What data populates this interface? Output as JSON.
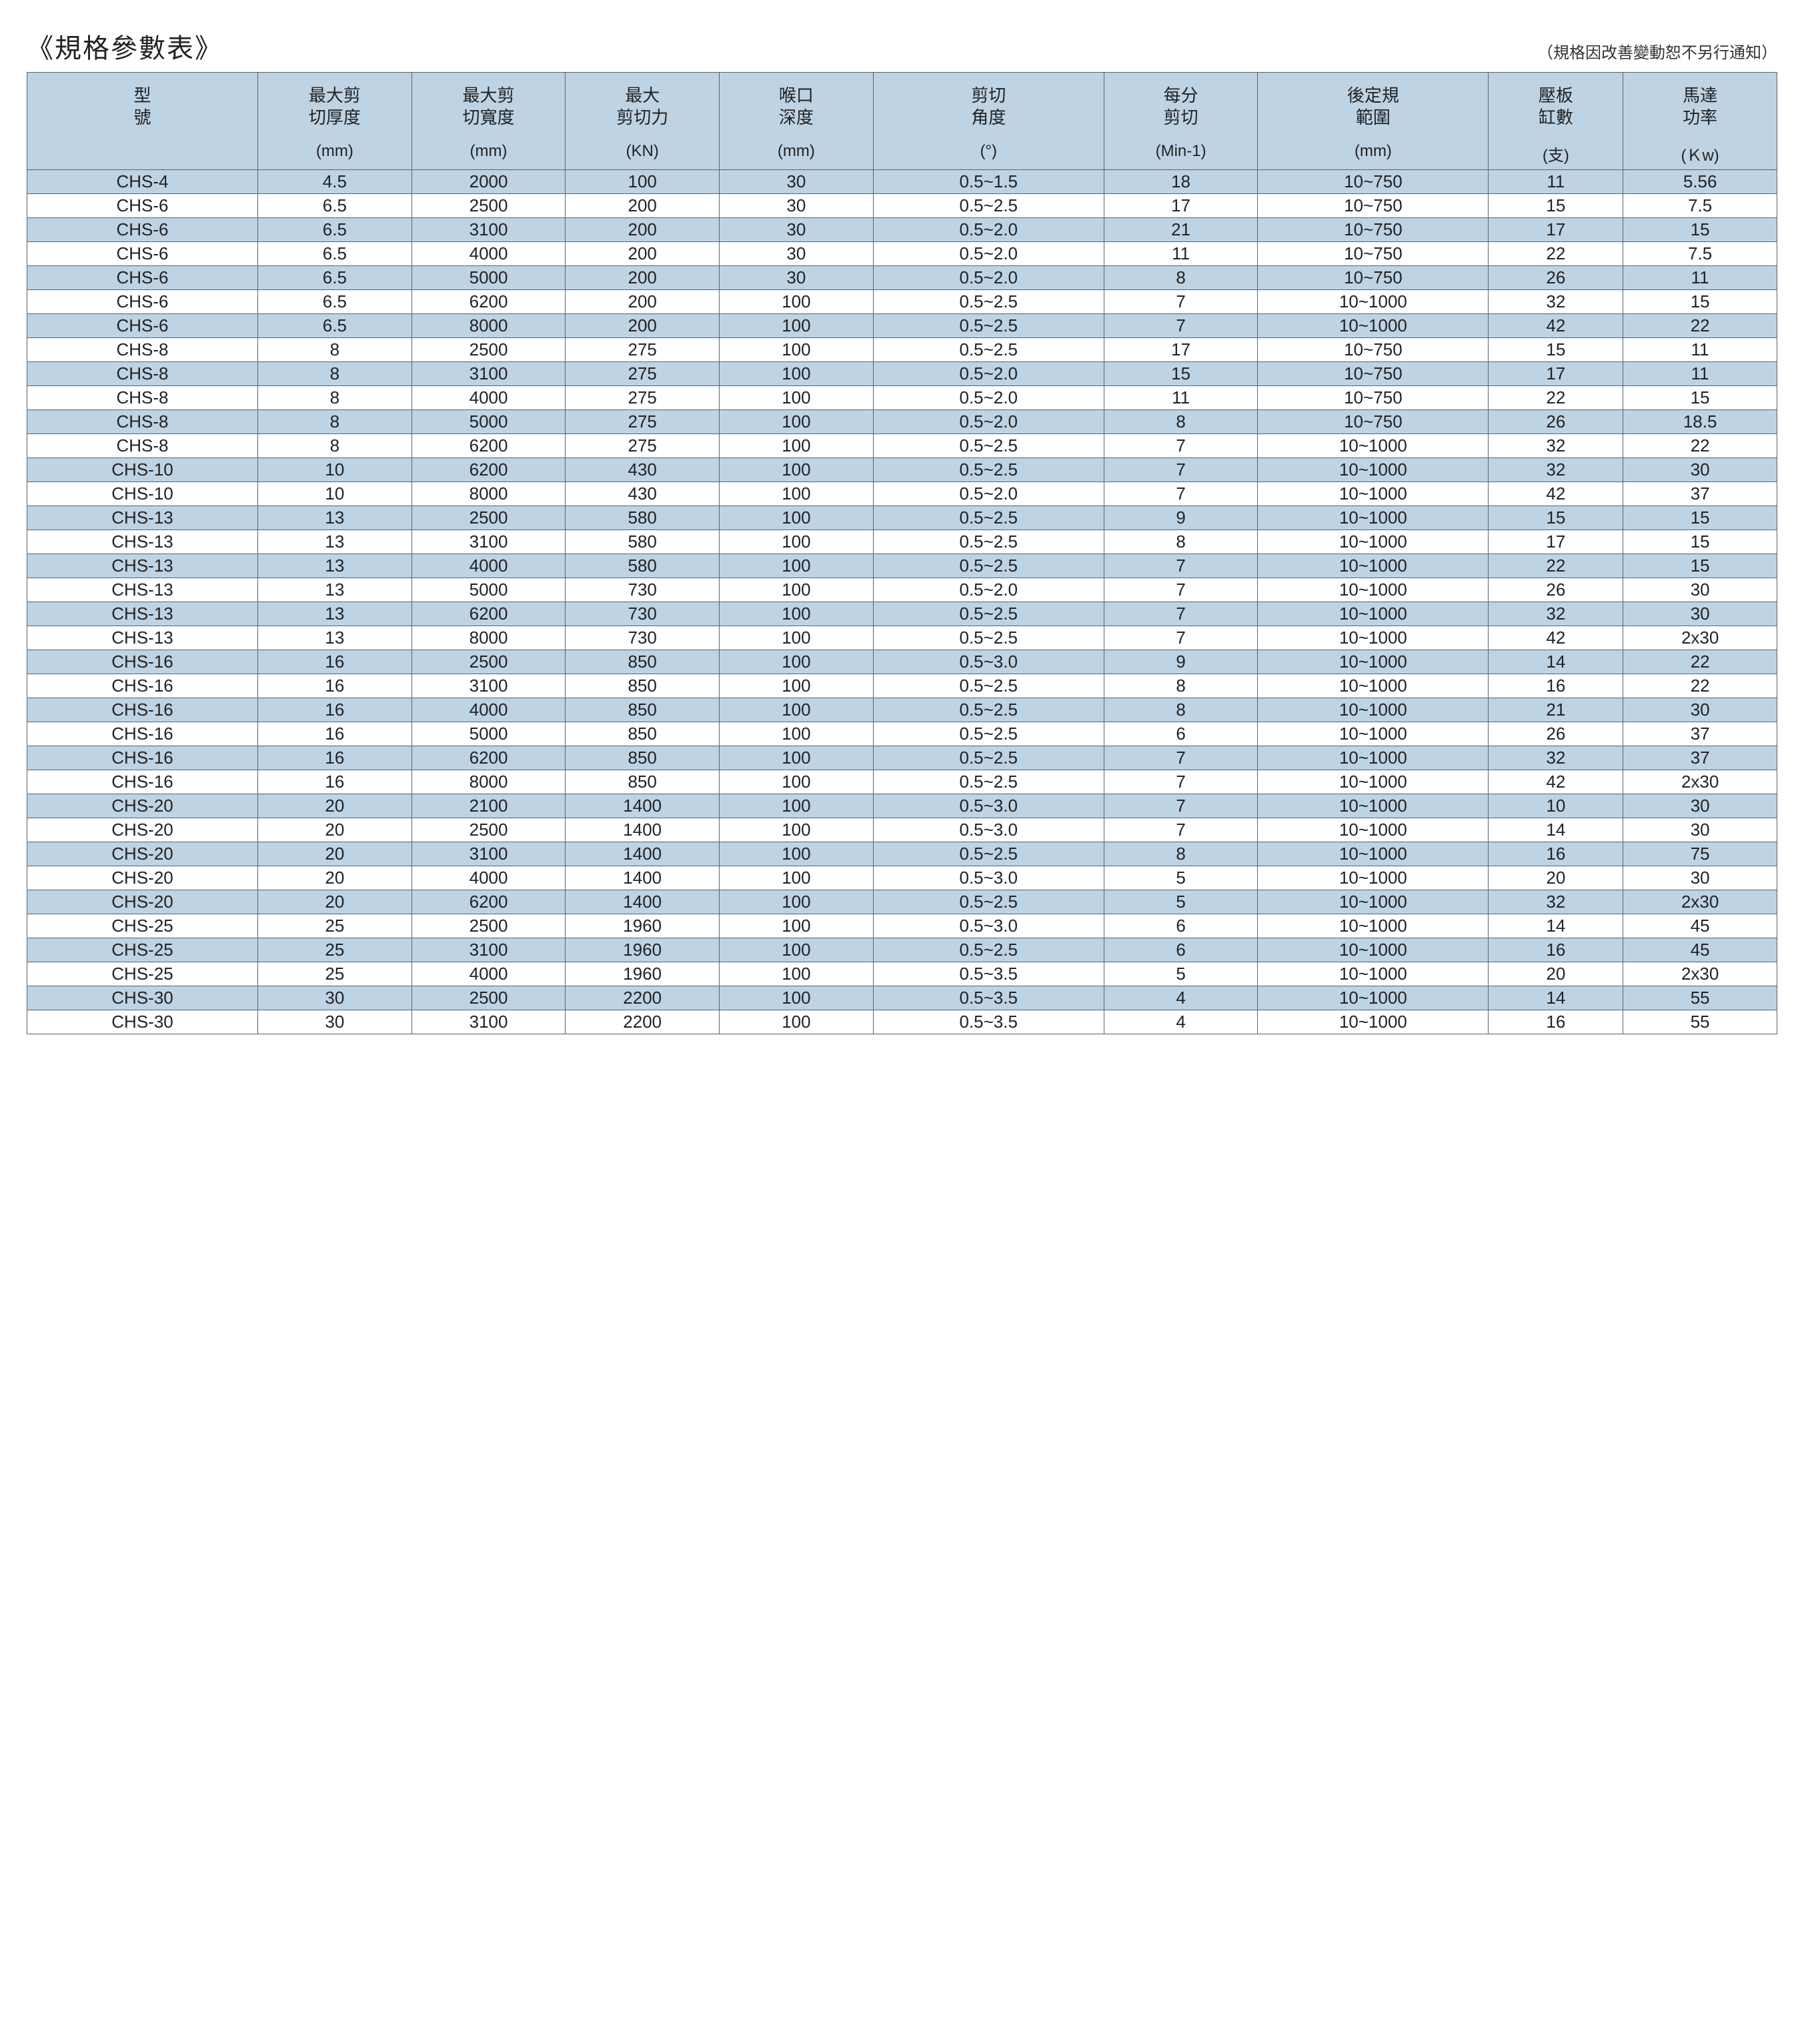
{
  "title": "《規格參數表》",
  "note": "（規格因改善變動恕不另行通知）",
  "columns": [
    {
      "label": "型\n號",
      "unit": "",
      "width": "12%"
    },
    {
      "label": "最大剪\n切厚度",
      "unit": "(mm)",
      "width": "8%"
    },
    {
      "label": "最大剪\n切寬度",
      "unit": "(mm)",
      "width": "8%"
    },
    {
      "label": "最大\n剪切力",
      "unit": "(KN)",
      "width": "8%"
    },
    {
      "label": "喉口\n深度",
      "unit": "(mm)",
      "width": "8%"
    },
    {
      "label": "剪切\n角度",
      "unit": "(°)",
      "width": "12%"
    },
    {
      "label": "每分\n剪切",
      "unit": "(Min-1)",
      "width": "8%"
    },
    {
      "label": "後定規\n範圍",
      "unit": "(mm)",
      "width": "12%"
    },
    {
      "label": "壓板\n缸數",
      "unit": "(支)",
      "width": "7%"
    },
    {
      "label": "馬達\n功率",
      "unit": "(Ｋw)",
      "width": "8%"
    }
  ],
  "rows": [
    [
      "CHS-4",
      "4.5",
      "2000",
      "100",
      "30",
      "0.5~1.5",
      "18",
      "10~750",
      "11",
      "5.56"
    ],
    [
      "CHS-6",
      "6.5",
      "2500",
      "200",
      "30",
      "0.5~2.5",
      "17",
      "10~750",
      "15",
      "7.5"
    ],
    [
      "CHS-6",
      "6.5",
      "3100",
      "200",
      "30",
      "0.5~2.0",
      "21",
      "10~750",
      "17",
      "15"
    ],
    [
      "CHS-6",
      "6.5",
      "4000",
      "200",
      "30",
      "0.5~2.0",
      "11",
      "10~750",
      "22",
      "7.5"
    ],
    [
      "CHS-6",
      "6.5",
      "5000",
      "200",
      "30",
      "0.5~2.0",
      "8",
      "10~750",
      "26",
      "11"
    ],
    [
      "CHS-6",
      "6.5",
      "6200",
      "200",
      "100",
      "0.5~2.5",
      "7",
      "10~1000",
      "32",
      "15"
    ],
    [
      "CHS-6",
      "6.5",
      "8000",
      "200",
      "100",
      "0.5~2.5",
      "7",
      "10~1000",
      "42",
      "22"
    ],
    [
      "CHS-8",
      "8",
      "2500",
      "275",
      "100",
      "0.5~2.5",
      "17",
      "10~750",
      "15",
      "11"
    ],
    [
      "CHS-8",
      "8",
      "3100",
      "275",
      "100",
      "0.5~2.0",
      "15",
      "10~750",
      "17",
      "11"
    ],
    [
      "CHS-8",
      "8",
      "4000",
      "275",
      "100",
      "0.5~2.0",
      "11",
      "10~750",
      "22",
      "15"
    ],
    [
      "CHS-8",
      "8",
      "5000",
      "275",
      "100",
      "0.5~2.0",
      "8",
      "10~750",
      "26",
      "18.5"
    ],
    [
      "CHS-8",
      "8",
      "6200",
      "275",
      "100",
      "0.5~2.5",
      "7",
      "10~1000",
      "32",
      "22"
    ],
    [
      "CHS-10",
      "10",
      "6200",
      "430",
      "100",
      "0.5~2.5",
      "7",
      "10~1000",
      "32",
      "30"
    ],
    [
      "CHS-10",
      "10",
      "8000",
      "430",
      "100",
      "0.5~2.0",
      "7",
      "10~1000",
      "42",
      "37"
    ],
    [
      "CHS-13",
      "13",
      "2500",
      "580",
      "100",
      "0.5~2.5",
      "9",
      "10~1000",
      "15",
      "15"
    ],
    [
      "CHS-13",
      "13",
      "3100",
      "580",
      "100",
      "0.5~2.5",
      "8",
      "10~1000",
      "17",
      "15"
    ],
    [
      "CHS-13",
      "13",
      "4000",
      "580",
      "100",
      "0.5~2.5",
      "7",
      "10~1000",
      "22",
      "15"
    ],
    [
      "CHS-13",
      "13",
      "5000",
      "730",
      "100",
      "0.5~2.0",
      "7",
      "10~1000",
      "26",
      "30"
    ],
    [
      "CHS-13",
      "13",
      "6200",
      "730",
      "100",
      "0.5~2.5",
      "7",
      "10~1000",
      "32",
      "30"
    ],
    [
      "CHS-13",
      "13",
      "8000",
      "730",
      "100",
      "0.5~2.5",
      "7",
      "10~1000",
      "42",
      "2x30"
    ],
    [
      "CHS-16",
      "16",
      "2500",
      "850",
      "100",
      "0.5~3.0",
      "9",
      "10~1000",
      "14",
      "22"
    ],
    [
      "CHS-16",
      "16",
      "3100",
      "850",
      "100",
      "0.5~2.5",
      "8",
      "10~1000",
      "16",
      "22"
    ],
    [
      "CHS-16",
      "16",
      "4000",
      "850",
      "100",
      "0.5~2.5",
      "8",
      "10~1000",
      "21",
      "30"
    ],
    [
      "CHS-16",
      "16",
      "5000",
      "850",
      "100",
      "0.5~2.5",
      "6",
      "10~1000",
      "26",
      "37"
    ],
    [
      "CHS-16",
      "16",
      "6200",
      "850",
      "100",
      "0.5~2.5",
      "7",
      "10~1000",
      "32",
      "37"
    ],
    [
      "CHS-16",
      "16",
      "8000",
      "850",
      "100",
      "0.5~2.5",
      "7",
      "10~1000",
      "42",
      "2x30"
    ],
    [
      "CHS-20",
      "20",
      "2100",
      "1400",
      "100",
      "0.5~3.0",
      "7",
      "10~1000",
      "10",
      "30"
    ],
    [
      "CHS-20",
      "20",
      "2500",
      "1400",
      "100",
      "0.5~3.0",
      "7",
      "10~1000",
      "14",
      "30"
    ],
    [
      "CHS-20",
      "20",
      "3100",
      "1400",
      "100",
      "0.5~2.5",
      "8",
      "10~1000",
      "16",
      "75"
    ],
    [
      "CHS-20",
      "20",
      "4000",
      "1400",
      "100",
      "0.5~3.0",
      "5",
      "10~1000",
      "20",
      "30"
    ],
    [
      "CHS-20",
      "20",
      "6200",
      "1400",
      "100",
      "0.5~2.5",
      "5",
      "10~1000",
      "32",
      "2x30"
    ],
    [
      "CHS-25",
      "25",
      "2500",
      "1960",
      "100",
      "0.5~3.0",
      "6",
      "10~1000",
      "14",
      "45"
    ],
    [
      "CHS-25",
      "25",
      "3100",
      "1960",
      "100",
      "0.5~2.5",
      "6",
      "10~1000",
      "16",
      "45"
    ],
    [
      "CHS-25",
      "25",
      "4000",
      "1960",
      "100",
      "0.5~3.5",
      "5",
      "10~1000",
      "20",
      "2x30"
    ],
    [
      "CHS-30",
      "30",
      "2500",
      "2200",
      "100",
      "0.5~3.5",
      "4",
      "10~1000",
      "14",
      "55"
    ],
    [
      "CHS-30",
      "30",
      "3100",
      "2200",
      "100",
      "0.5~3.5",
      "4",
      "10~1000",
      "16",
      "55"
    ]
  ],
  "colors": {
    "header_bg": "#bed3e4",
    "row_odd_bg": "#bed3e4",
    "row_even_bg": "#ffffff",
    "border": "#59636b"
  }
}
